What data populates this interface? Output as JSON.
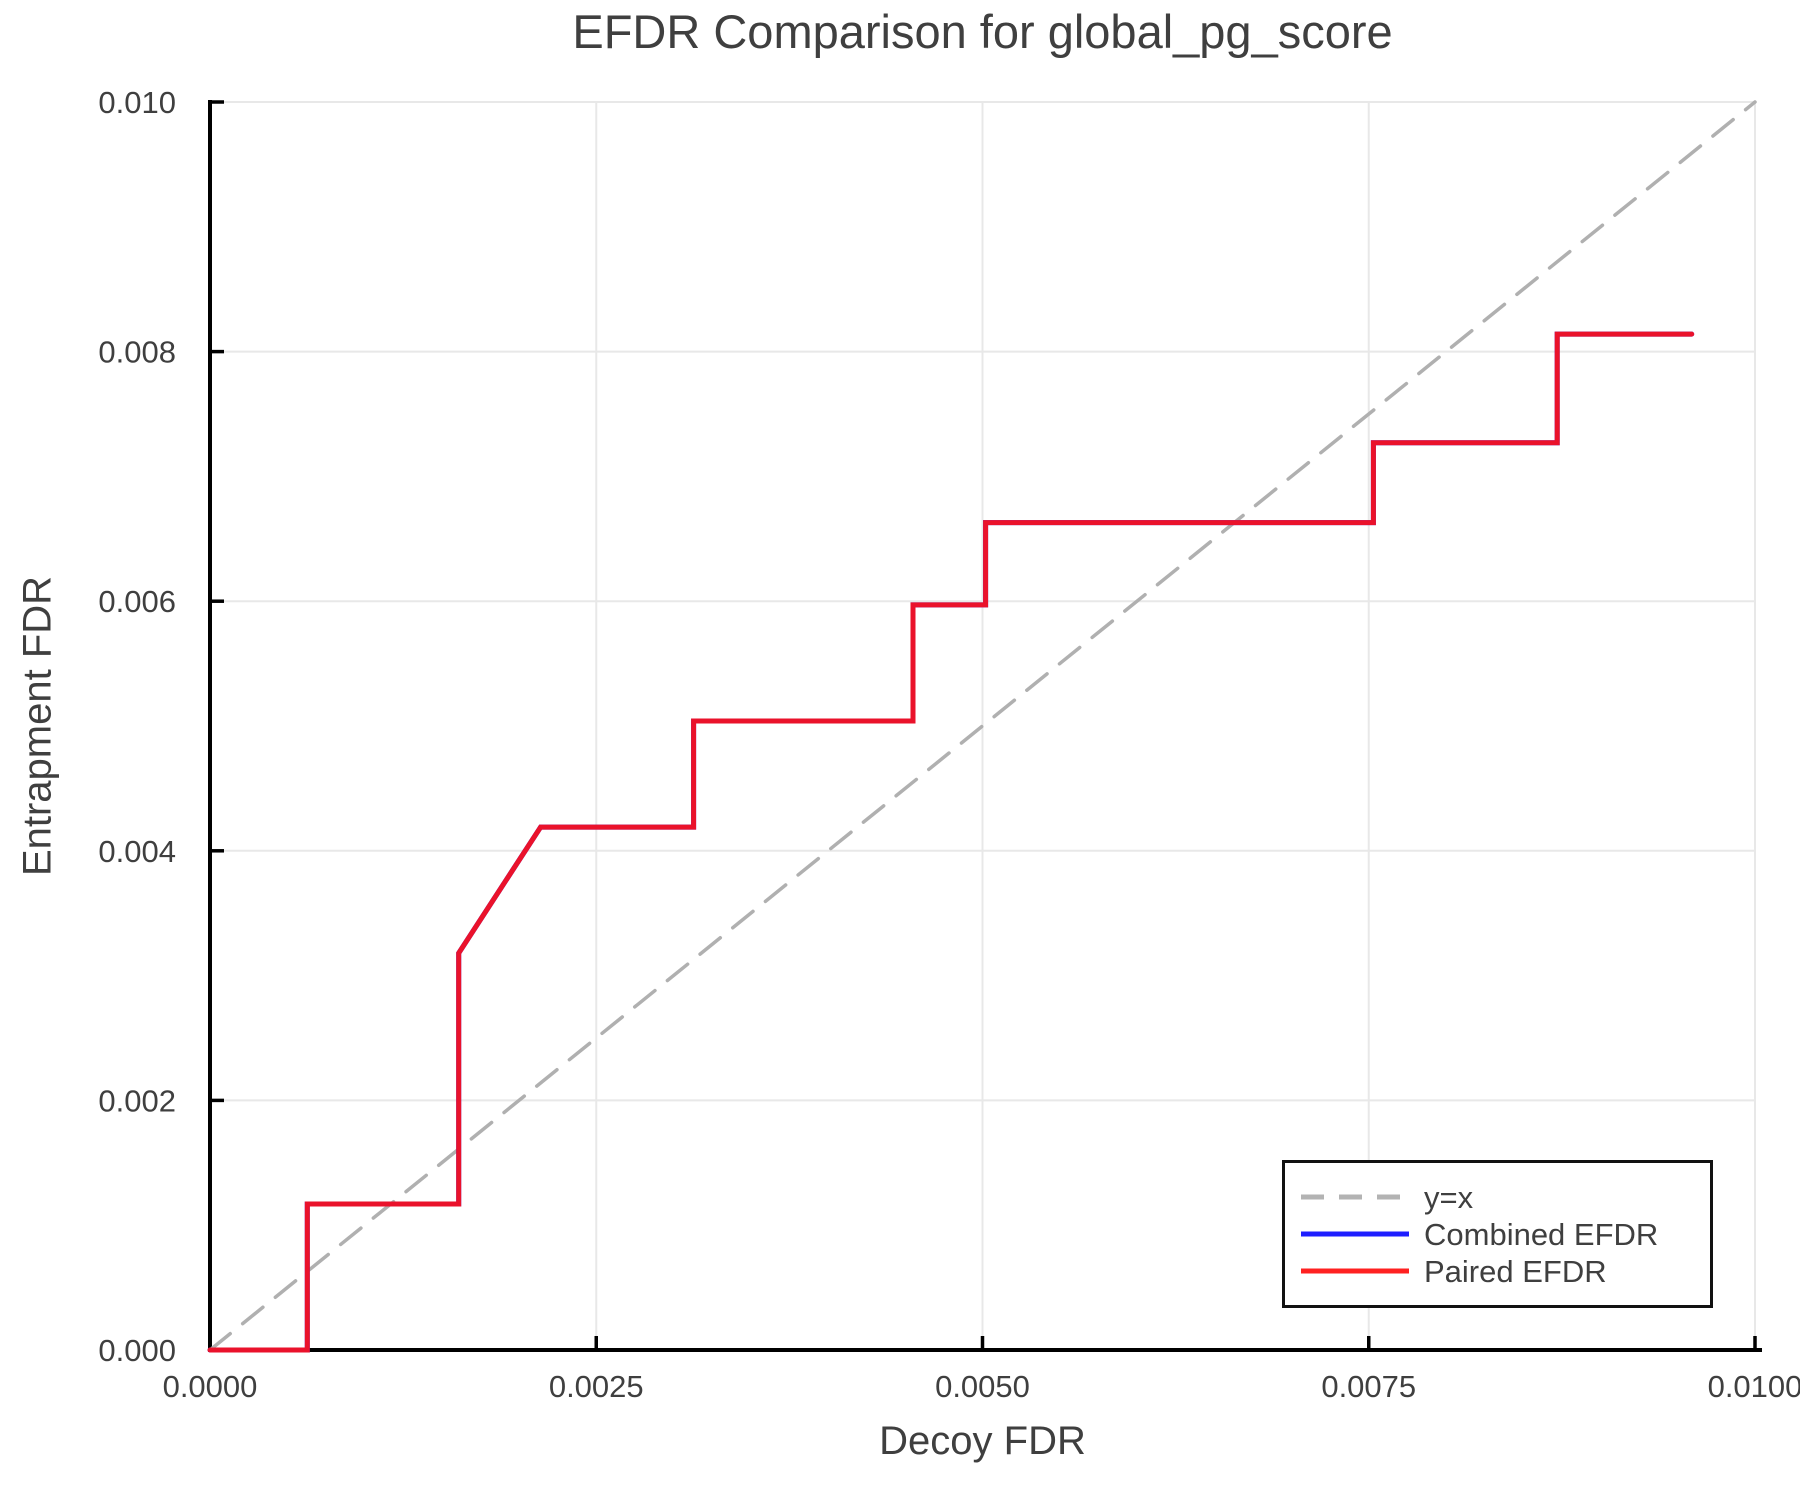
{
  "chart_data": {
    "type": "line",
    "title": "EFDR Comparison for global_pg_score",
    "xlabel": "Decoy FDR",
    "ylabel": "Entrapment FDR",
    "xlim": [
      0.0,
      0.01
    ],
    "ylim": [
      0.0,
      0.01
    ],
    "grid": true,
    "x_ticks": {
      "values": [
        0.0,
        0.0025,
        0.005,
        0.0075,
        0.01
      ],
      "labels": [
        "0.0000",
        "0.0025",
        "0.0050",
        "0.0075",
        "0.0100"
      ]
    },
    "y_ticks": {
      "values": [
        0.0,
        0.002,
        0.004,
        0.006,
        0.008,
        0.01
      ],
      "labels": [
        "0.000",
        "0.002",
        "0.004",
        "0.006",
        "0.008",
        "0.010"
      ]
    },
    "legend": {
      "position": "lower right",
      "items": [
        {
          "label": "y=x",
          "color": "#b3b3b3",
          "style": "dashed"
        },
        {
          "label": "Combined EFDR",
          "color": "#1e1eff",
          "style": "solid"
        },
        {
          "label": "Paired EFDR",
          "color": "#ff2121",
          "style": "solid"
        }
      ]
    },
    "series": [
      {
        "name": "y=x",
        "style": "dashed",
        "color": "#b0b0b0",
        "points": [
          [
            0.0,
            0.0
          ],
          [
            0.01,
            0.01
          ]
        ]
      },
      {
        "name": "Combined EFDR",
        "style": "solid",
        "color": "#1e1eff",
        "note": "not separately visible; coincides with Paired EFDR curve (hidden beneath it)",
        "points": [
          [
            0.0,
            0.0
          ],
          [
            0.00063,
            0.0
          ],
          [
            0.00063,
            0.00117
          ],
          [
            0.00161,
            0.00117
          ],
          [
            0.00161,
            0.00318
          ],
          [
            0.00214,
            0.00419
          ],
          [
            0.00313,
            0.00419
          ],
          [
            0.00313,
            0.00504
          ],
          [
            0.00455,
            0.00504
          ],
          [
            0.00455,
            0.00597
          ],
          [
            0.00502,
            0.00597
          ],
          [
            0.00502,
            0.00663
          ],
          [
            0.00753,
            0.00663
          ],
          [
            0.00753,
            0.00727
          ],
          [
            0.00872,
            0.00727
          ],
          [
            0.00872,
            0.00814
          ],
          [
            0.00959,
            0.00814
          ]
        ]
      },
      {
        "name": "Paired EFDR",
        "style": "solid",
        "color": "#ea122b",
        "points": [
          [
            0.0,
            0.0
          ],
          [
            0.00063,
            0.0
          ],
          [
            0.00063,
            0.00117
          ],
          [
            0.00161,
            0.00117
          ],
          [
            0.00161,
            0.00318
          ],
          [
            0.00214,
            0.00419
          ],
          [
            0.00313,
            0.00419
          ],
          [
            0.00313,
            0.00504
          ],
          [
            0.00455,
            0.00504
          ],
          [
            0.00455,
            0.00597
          ],
          [
            0.00502,
            0.00597
          ],
          [
            0.00502,
            0.00663
          ],
          [
            0.00753,
            0.00663
          ],
          [
            0.00753,
            0.00727
          ],
          [
            0.00872,
            0.00727
          ],
          [
            0.00872,
            0.00814
          ],
          [
            0.00959,
            0.00814
          ]
        ]
      }
    ]
  },
  "colors": {
    "background": "#ffffff",
    "grid": "#e8e8e8",
    "spine": "#000000",
    "tick": "#000000",
    "text": "#3f3f3f",
    "legend_border": "#111111",
    "legend_background": "#ffffff"
  }
}
